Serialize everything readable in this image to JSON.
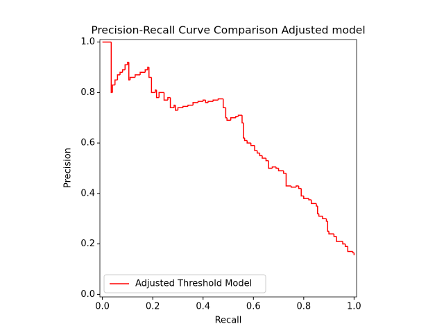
{
  "chart_data": {
    "type": "step",
    "title": "Precision-Recall Curve Comparison Adjusted model",
    "x_label": "Recall",
    "y_label": "Precision",
    "xlim": [
      -0.01,
      1.01
    ],
    "ylim": [
      -0.01,
      1.01
    ],
    "xticks": [
      {
        "value": 0,
        "label": "0.0"
      },
      0.2,
      0.4,
      0.6,
      0.8,
      {
        "value": 1,
        "label": "1.0"
      }
    ],
    "yticks": [
      {
        "value": 0,
        "label": "0.0"
      },
      0.2,
      0.4,
      0.6,
      0.8,
      {
        "value": 1,
        "label": "1.0"
      }
    ],
    "legend": "lower left",
    "series": [
      {
        "name": "Adjusted Threshold Model",
        "color": "#ff0000",
        "x": [
          0,
          0.035,
          0.04,
          0.05,
          0.06,
          0.07,
          0.08,
          0.09,
          0.1,
          0.105,
          0.11,
          0.13,
          0.15,
          0.17,
          0.18,
          0.185,
          0.195,
          0.21,
          0.215,
          0.225,
          0.245,
          0.26,
          0.27,
          0.285,
          0.29,
          0.3,
          0.32,
          0.34,
          0.36,
          0.38,
          0.4,
          0.41,
          0.42,
          0.44,
          0.46,
          0.48,
          0.49,
          0.495,
          0.51,
          0.53,
          0.54,
          0.555,
          0.56,
          0.565,
          0.575,
          0.59,
          0.605,
          0.615,
          0.625,
          0.635,
          0.65,
          0.66,
          0.675,
          0.69,
          0.7,
          0.72,
          0.73,
          0.75,
          0.77,
          0.78,
          0.79,
          0.8,
          0.82,
          0.83,
          0.85,
          0.855,
          0.86,
          0.875,
          0.89,
          0.895,
          0.9,
          0.92,
          0.93,
          0.945,
          0.955,
          0.965,
          0.975,
          0.995,
          1.0
        ],
        "values": [
          1.0,
          0.8,
          0.83,
          0.85,
          0.87,
          0.88,
          0.89,
          0.91,
          0.92,
          0.85,
          0.86,
          0.87,
          0.88,
          0.89,
          0.9,
          0.86,
          0.8,
          0.81,
          0.78,
          0.8,
          0.77,
          0.78,
          0.74,
          0.75,
          0.73,
          0.74,
          0.745,
          0.75,
          0.76,
          0.765,
          0.77,
          0.76,
          0.765,
          0.77,
          0.775,
          0.74,
          0.7,
          0.69,
          0.7,
          0.705,
          0.71,
          0.68,
          0.62,
          0.61,
          0.6,
          0.59,
          0.57,
          0.56,
          0.55,
          0.54,
          0.53,
          0.5,
          0.505,
          0.5,
          0.49,
          0.48,
          0.43,
          0.425,
          0.43,
          0.42,
          0.39,
          0.38,
          0.375,
          0.36,
          0.35,
          0.32,
          0.31,
          0.3,
          0.29,
          0.25,
          0.24,
          0.23,
          0.21,
          0.21,
          0.2,
          0.19,
          0.17,
          0.165,
          0.155
        ]
      }
    ]
  }
}
